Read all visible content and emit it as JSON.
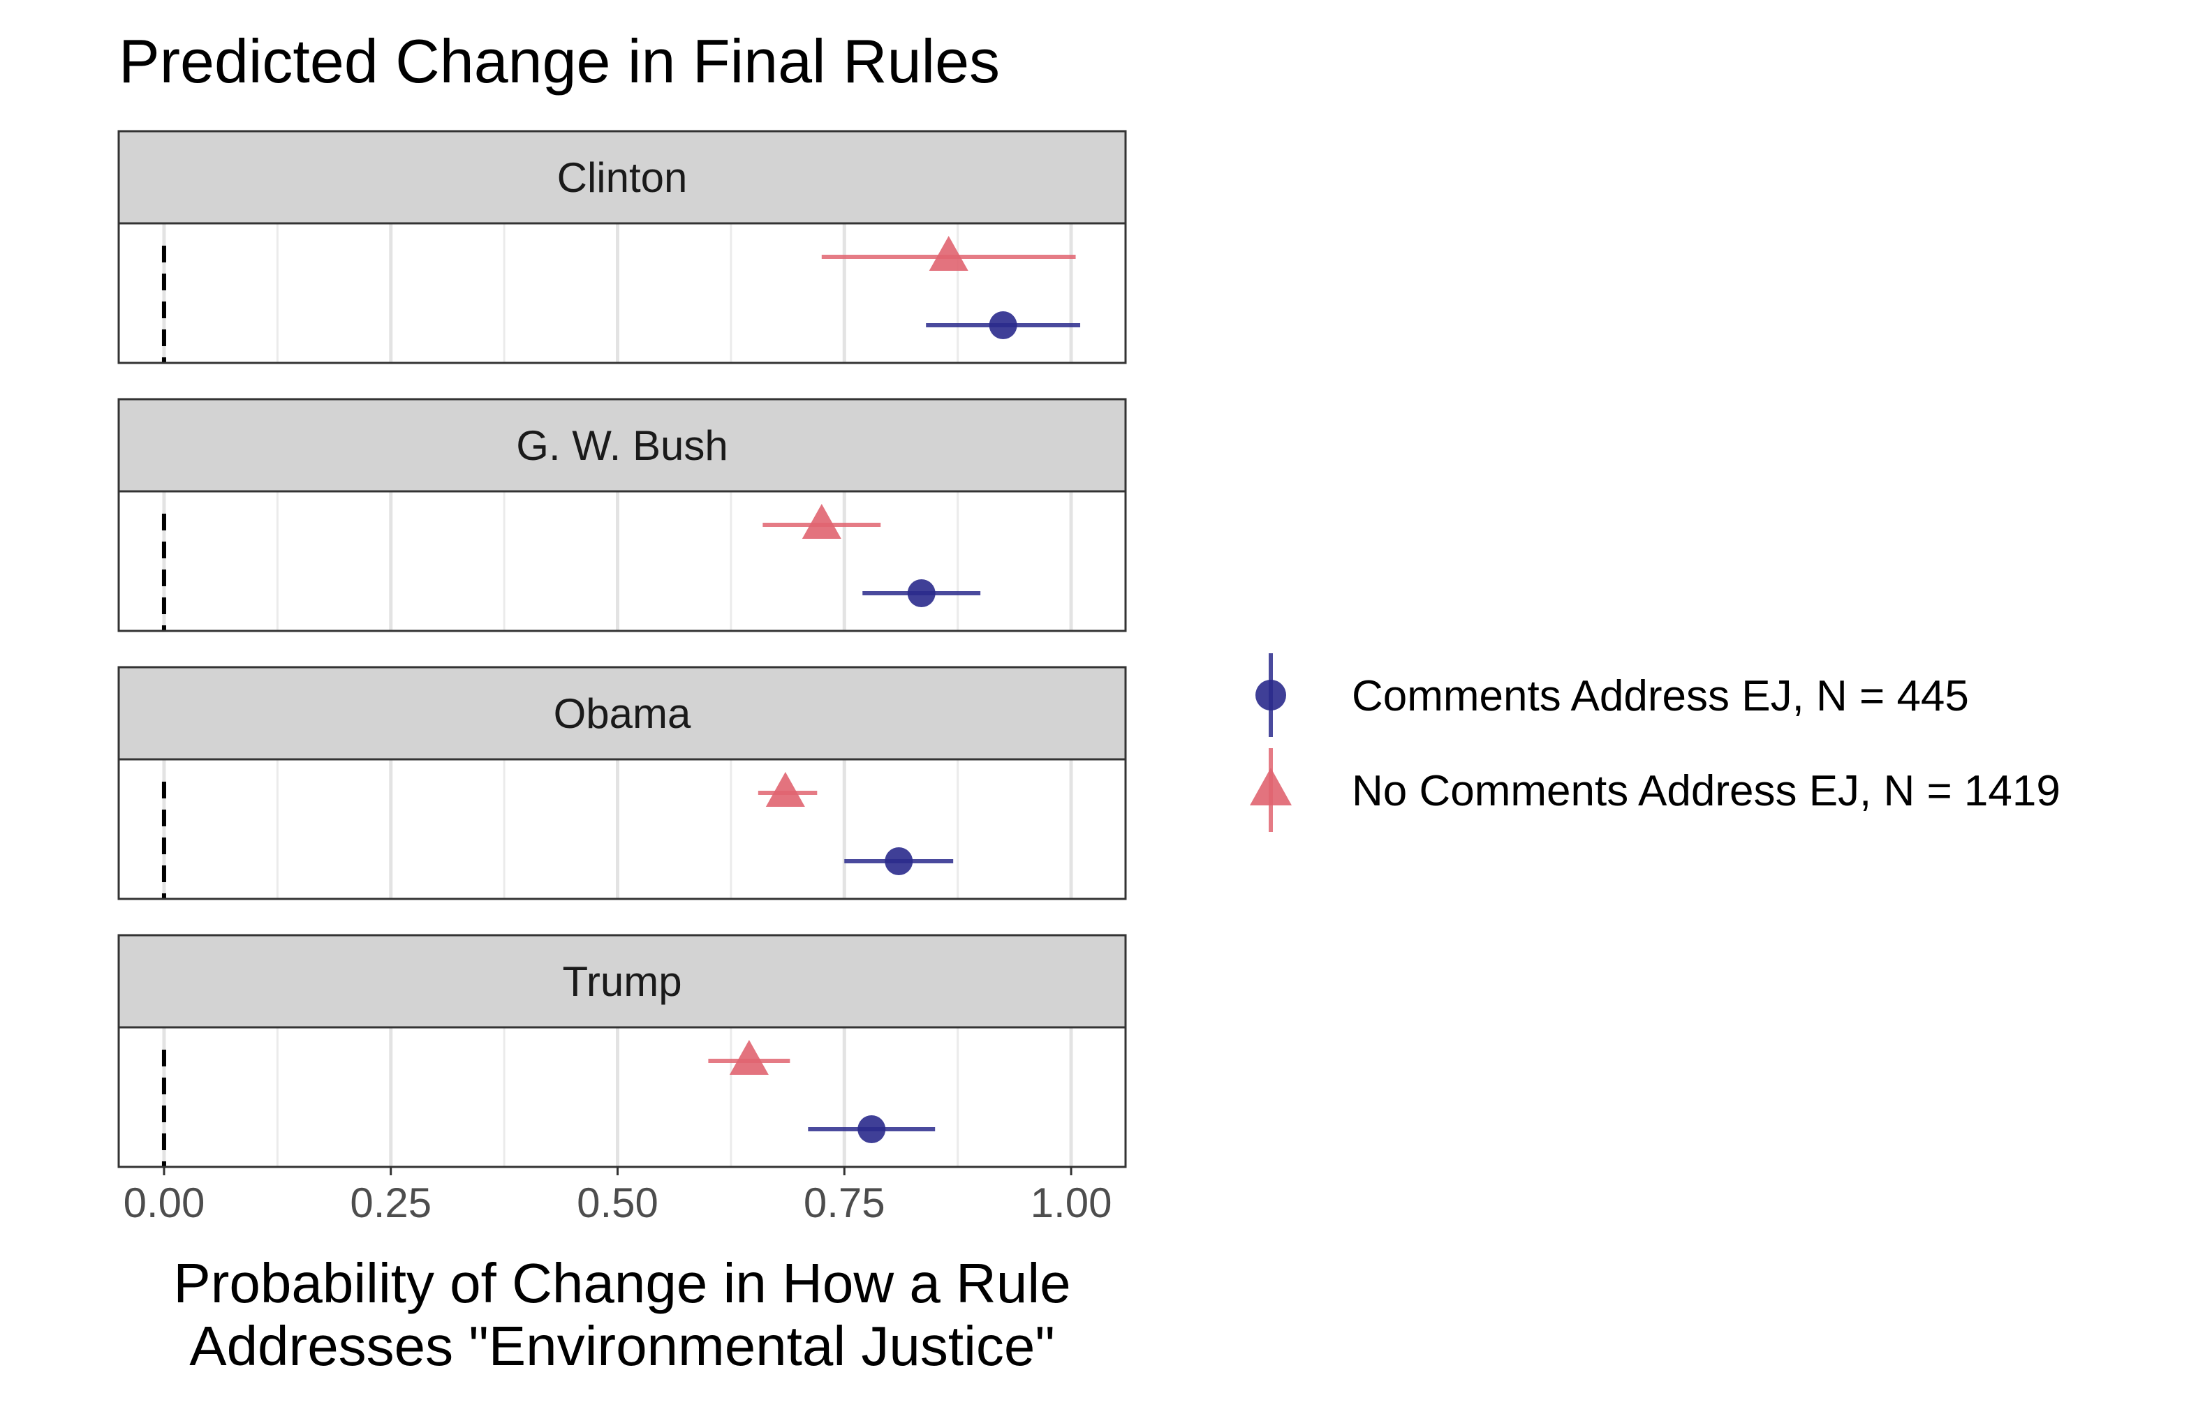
{
  "chart_data": {
    "type": "scatter",
    "title": "Predicted Change in Final Rules",
    "xlabel_lines": [
      "Probability of Change in How a Rule",
      "Addresses \"Environmental Justice\""
    ],
    "xlim": [
      -0.05,
      1.06
    ],
    "xticks": [
      0.0,
      0.25,
      0.5,
      0.75,
      1.0
    ],
    "xtick_labels": [
      "0.00",
      "0.25",
      "0.50",
      "0.75",
      "1.00"
    ],
    "reference_line": {
      "x": 0,
      "style": "dashed"
    },
    "grid": true,
    "facets": [
      "Clinton",
      "G. W. Bush",
      "Obama",
      "Trump"
    ],
    "series": [
      {
        "name": "Comments Address EJ, N = 445",
        "color": "#2a2a8c",
        "marker": "circle",
        "values": [
          {
            "facet": "Clinton",
            "estimate": 0.925,
            "lower": 0.84,
            "upper": 1.01
          },
          {
            "facet": "G. W. Bush",
            "estimate": 0.835,
            "lower": 0.77,
            "upper": 0.9
          },
          {
            "facet": "Obama",
            "estimate": 0.81,
            "lower": 0.75,
            "upper": 0.87
          },
          {
            "facet": "Trump",
            "estimate": 0.78,
            "lower": 0.71,
            "upper": 0.85
          }
        ]
      },
      {
        "name": "No Comments Address EJ, N = 1419",
        "color": "#e06470",
        "marker": "triangle",
        "values": [
          {
            "facet": "Clinton",
            "estimate": 0.865,
            "lower": 0.725,
            "upper": 1.005
          },
          {
            "facet": "G. W. Bush",
            "estimate": 0.725,
            "lower": 0.66,
            "upper": 0.79
          },
          {
            "facet": "Obama",
            "estimate": 0.685,
            "lower": 0.655,
            "upper": 0.72
          },
          {
            "facet": "Trump",
            "estimate": 0.645,
            "lower": 0.6,
            "upper": 0.69
          }
        ]
      }
    ],
    "legend_position": "right"
  }
}
